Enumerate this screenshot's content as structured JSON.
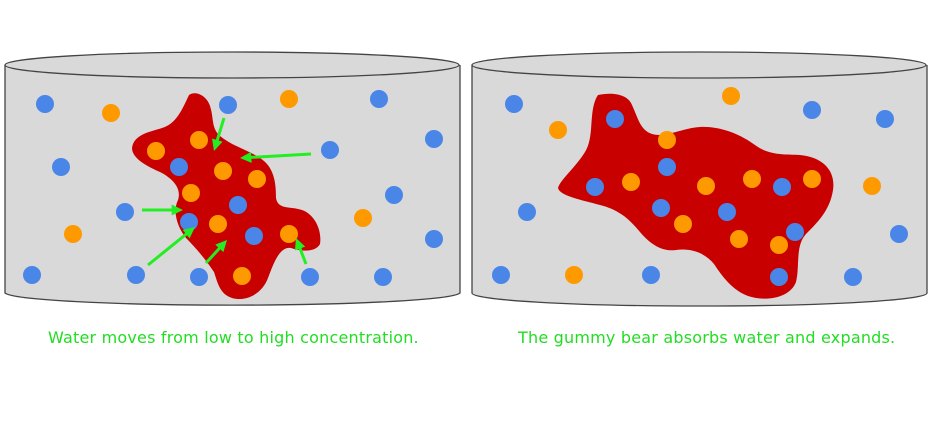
{
  "colors": {
    "container_fill": "#d9d9d9",
    "container_stroke": "#444444",
    "gummy_fill": "#c80000",
    "water_molecule": "#4a86e8",
    "solute_molecule": "#ff9900",
    "arrow": "#22ee22",
    "caption": "#22dd22"
  },
  "panels": [
    {
      "id": "before",
      "caption": "Water moves from low to high concentration.",
      "gummy_bear_state": "small",
      "water_molecules_outside": 16,
      "solute_molecules_outside": 4,
      "molecules_inside_gummy": 14,
      "arrows": 7
    },
    {
      "id": "after",
      "caption": "The gummy bear absorbs water and expands.",
      "gummy_bear_state": "expanded",
      "water_molecules_outside": 8,
      "solute_molecules_outside": 4,
      "molecules_inside_gummy": 18,
      "arrows": 0
    }
  ]
}
